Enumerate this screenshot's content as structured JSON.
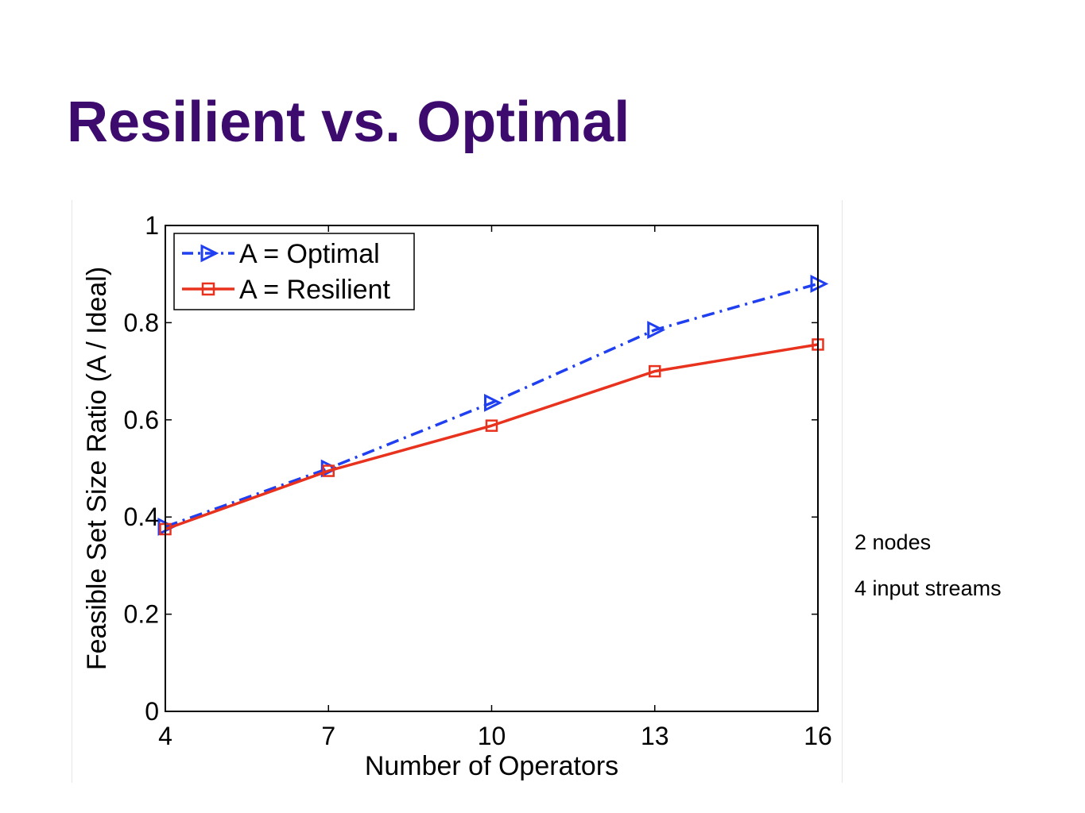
{
  "slide": {
    "title": "Resilient vs. Optimal",
    "notes": [
      "2 nodes",
      "4 input streams"
    ]
  },
  "colors": {
    "title": "#3d0a6e",
    "optimal": "#1f3ff0",
    "resilient": "#e8321e"
  },
  "chart_data": {
    "type": "line",
    "xlabel": "Number of Operators",
    "ylabel": "Feasible Set Size Ratio (A / Ideal)",
    "x": [
      4,
      7,
      10,
      13,
      16
    ],
    "xticks": [
      "4",
      "7",
      "10",
      "13",
      "16"
    ],
    "yticks": [
      "0",
      "0.2",
      "0.4",
      "0.6",
      "0.8",
      "1"
    ],
    "xlim": [
      4,
      16
    ],
    "ylim": [
      0,
      1
    ],
    "grid": false,
    "legend_position": "top-left",
    "series": [
      {
        "name": "A = Optimal",
        "values": [
          0.38,
          0.5,
          0.635,
          0.785,
          0.88
        ],
        "line_style": "dash-dot",
        "marker": "right-triangle",
        "color": "#1f3ff0"
      },
      {
        "name": "A = Resilient",
        "values": [
          0.375,
          0.495,
          0.588,
          0.7,
          0.755
        ],
        "line_style": "solid",
        "marker": "square",
        "color": "#e8321e"
      }
    ]
  }
}
